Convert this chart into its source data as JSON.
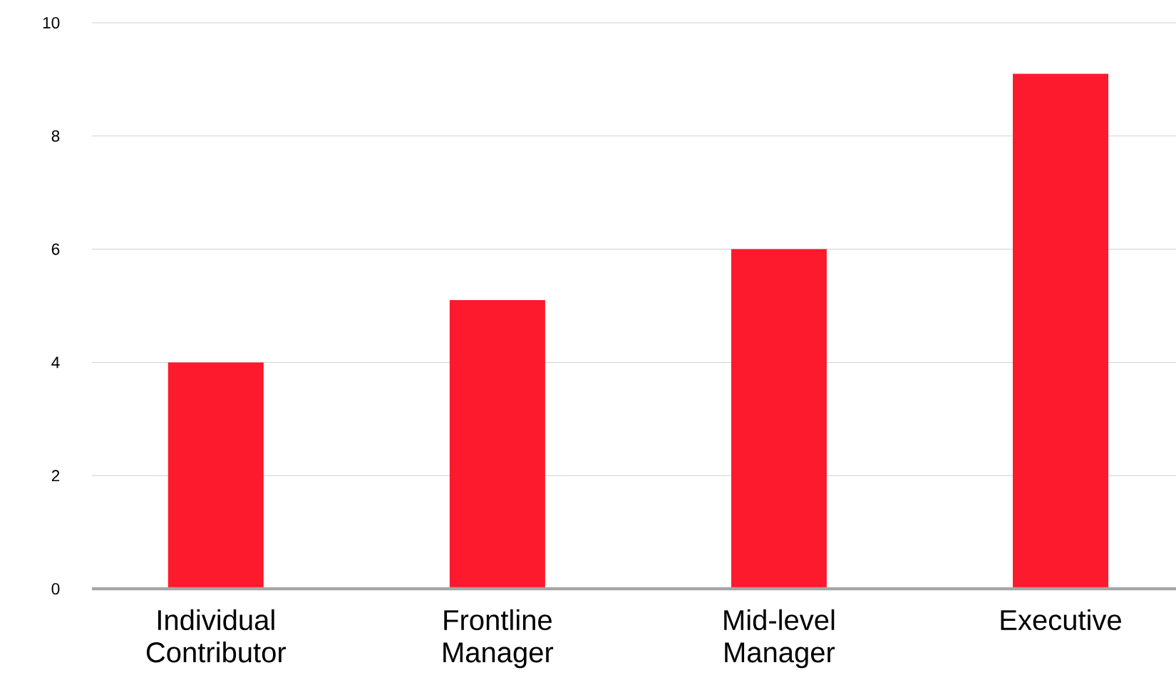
{
  "chart_data": {
    "type": "bar",
    "categories": [
      "Individual Contributor",
      "Frontline Manager",
      "Mid-level Manager",
      "Executive"
    ],
    "values": [
      4,
      5.1,
      6,
      9.1
    ],
    "color": "#fe1a2d",
    "ylim": [
      0,
      10
    ],
    "yticks": [
      0,
      2,
      4,
      6,
      8,
      10
    ],
    "grid": "y"
  }
}
